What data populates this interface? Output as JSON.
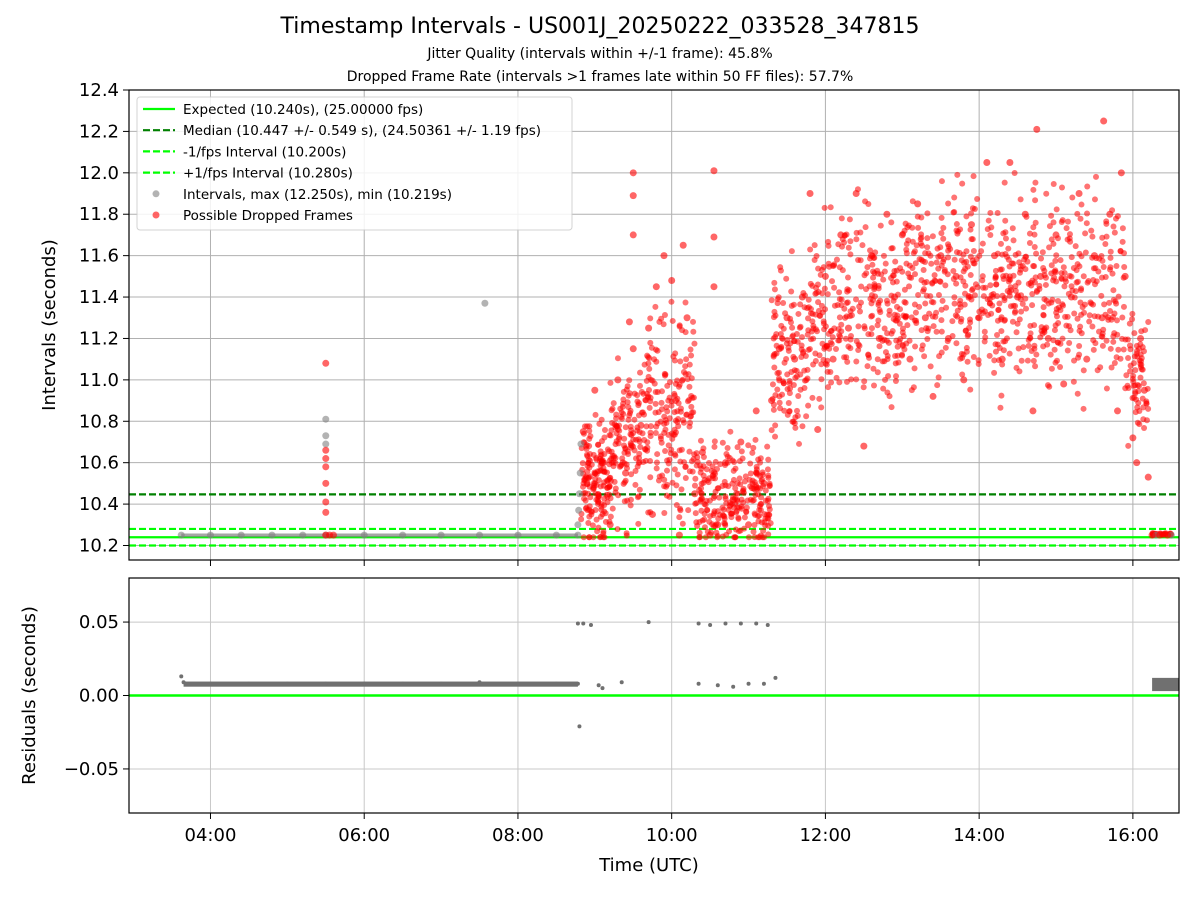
{
  "chart_data": {
    "type": "scatter",
    "title": "Timestamp Intervals - US001J_20250222_033528_347815",
    "subtitle1": "Jitter Quality (intervals within +/-1 frame): 45.8%",
    "subtitle2": "Dropped Frame Rate (intervals >1 frames late within 50 FF files): 57.7%",
    "xlabel": "Time (UTC)",
    "x_range_hours": [
      2.94,
      16.6
    ],
    "x_ticks": [
      {
        "v": 4,
        "label": "04:00"
      },
      {
        "v": 6,
        "label": "06:00"
      },
      {
        "v": 8,
        "label": "08:00"
      },
      {
        "v": 10,
        "label": "10:00"
      },
      {
        "v": 12,
        "label": "12:00"
      },
      {
        "v": 14,
        "label": "14:00"
      },
      {
        "v": 16,
        "label": "16:00"
      }
    ],
    "top": {
      "ylabel": "Intervals (seconds)",
      "ylim": [
        10.13,
        12.4
      ],
      "y_ticks": [
        {
          "v": 10.2,
          "label": "10.2"
        },
        {
          "v": 10.4,
          "label": "10.4"
        },
        {
          "v": 10.6,
          "label": "10.6"
        },
        {
          "v": 10.8,
          "label": "10.8"
        },
        {
          "v": 11.0,
          "label": "11.0"
        },
        {
          "v": 11.2,
          "label": "11.2"
        },
        {
          "v": 11.4,
          "label": "11.4"
        },
        {
          "v": 11.6,
          "label": "11.6"
        },
        {
          "v": 11.8,
          "label": "11.8"
        },
        {
          "v": 12.0,
          "label": "12.0"
        },
        {
          "v": 12.2,
          "label": "12.2"
        },
        {
          "v": 12.4,
          "label": "12.4"
        }
      ],
      "grid": "horizontal",
      "lines": [
        {
          "name": "Expected (10.240s), (25.00000 fps)",
          "y": 10.24,
          "color": "#00ff00",
          "style": "solid"
        },
        {
          "name": "Median (10.447 +/- 0.549 s), (24.50361 +/- 1.19 fps)",
          "y": 10.447,
          "color": "#008000",
          "style": "dashed"
        },
        {
          "name": "-1/fps Interval (10.200s)",
          "y": 10.2,
          "color": "#00ff00",
          "style": "dashed"
        },
        {
          "name": "+1/fps Interval (10.280s)",
          "y": 10.28,
          "color": "#00ff00",
          "style": "dashed"
        }
      ],
      "scatter_series": [
        {
          "name": "Intervals, max (12.250s), min (10.219s)",
          "color": "#808080",
          "points": [
            [
              3.62,
              10.25
            ],
            [
              4.0,
              10.25
            ],
            [
              4.4,
              10.25
            ],
            [
              4.8,
              10.25
            ],
            [
              5.2,
              10.25
            ],
            [
              5.5,
              10.25
            ],
            [
              5.5,
              10.81
            ],
            [
              5.5,
              10.73
            ],
            [
              5.5,
              10.69
            ],
            [
              6.0,
              10.25
            ],
            [
              6.5,
              10.25
            ],
            [
              7.0,
              10.25
            ],
            [
              7.5,
              10.25
            ],
            [
              7.57,
              11.37
            ],
            [
              8.0,
              10.25
            ],
            [
              8.5,
              10.25
            ],
            [
              8.78,
              10.25
            ],
            [
              8.78,
              10.3
            ],
            [
              8.79,
              10.37
            ],
            [
              8.8,
              10.45
            ],
            [
              8.81,
              10.55
            ],
            [
              8.82,
              10.69
            ],
            [
              16.3,
              10.25
            ],
            [
              16.5,
              10.25
            ]
          ]
        },
        {
          "name": "Possible Dropped Frames",
          "color": "#ff0000",
          "points": [
            [
              5.5,
              10.25
            ],
            [
              5.55,
              10.25
            ],
            [
              5.6,
              10.25
            ],
            [
              5.5,
              11.08
            ],
            [
              5.5,
              10.66
            ],
            [
              5.5,
              10.62
            ],
            [
              5.5,
              10.58
            ],
            [
              5.5,
              10.5
            ],
            [
              5.5,
              10.41
            ],
            [
              5.5,
              10.36
            ],
            [
              8.85,
              10.75
            ],
            [
              8.9,
              10.5
            ],
            [
              9.0,
              10.95
            ],
            [
              9.1,
              10.6
            ],
            [
              9.2,
              10.3
            ],
            [
              9.3,
              11.0
            ],
            [
              9.4,
              10.55
            ],
            [
              9.45,
              11.28
            ],
            [
              9.5,
              11.15
            ],
            [
              9.5,
              11.89
            ],
            [
              9.5,
              12.0
            ],
            [
              9.5,
              11.7
            ],
            [
              9.6,
              10.78
            ],
            [
              9.7,
              11.25
            ],
            [
              9.75,
              10.35
            ],
            [
              9.8,
              11.45
            ],
            [
              9.9,
              11.6
            ],
            [
              10.0,
              11.48
            ],
            [
              10.05,
              10.9
            ],
            [
              10.1,
              10.25
            ],
            [
              10.15,
              11.65
            ],
            [
              10.2,
              11.3
            ],
            [
              10.3,
              10.45
            ],
            [
              10.4,
              10.65
            ],
            [
              10.5,
              10.25
            ],
            [
              10.55,
              12.01
            ],
            [
              10.55,
              11.45
            ],
            [
              10.55,
              11.69
            ],
            [
              10.6,
              10.3
            ],
            [
              10.7,
              10.6
            ],
            [
              10.8,
              10.42
            ],
            [
              10.9,
              10.7
            ],
            [
              11.0,
              10.3
            ],
            [
              11.1,
              10.85
            ],
            [
              11.2,
              10.5
            ],
            [
              11.3,
              10.9
            ],
            [
              11.4,
              11.15
            ],
            [
              11.5,
              11.3
            ],
            [
              11.6,
              11.1
            ],
            [
              11.7,
              11.4
            ],
            [
              11.8,
              11.9
            ],
            [
              11.9,
              10.76
            ],
            [
              12.0,
              11.5
            ],
            [
              12.1,
              11.1
            ],
            [
              12.2,
              11.7
            ],
            [
              12.3,
              11.25
            ],
            [
              12.4,
              11.9
            ],
            [
              12.5,
              10.68
            ],
            [
              12.6,
              11.6
            ],
            [
              12.7,
              11.2
            ],
            [
              12.8,
              11.8
            ],
            [
              12.9,
              11.4
            ],
            [
              13.0,
              11.7
            ],
            [
              13.1,
              11.1
            ],
            [
              13.2,
              11.85
            ],
            [
              13.3,
              11.3
            ],
            [
              13.4,
              10.92
            ],
            [
              13.5,
              11.6
            ],
            [
              13.6,
              11.2
            ],
            [
              13.7,
              11.5
            ],
            [
              13.8,
              11.0
            ],
            [
              13.9,
              11.75
            ],
            [
              14.0,
              11.3
            ],
            [
              14.1,
              12.05
            ],
            [
              14.2,
              11.6
            ],
            [
              14.3,
              11.1
            ],
            [
              14.4,
              12.05
            ],
            [
              14.5,
              11.4
            ],
            [
              14.6,
              11.8
            ],
            [
              14.7,
              10.85
            ],
            [
              14.75,
              12.21
            ],
            [
              14.8,
              11.5
            ],
            [
              14.9,
              11.2
            ],
            [
              15.0,
              11.7
            ],
            [
              15.1,
              10.98
            ],
            [
              15.2,
              11.4
            ],
            [
              15.3,
              11.9
            ],
            [
              15.4,
              11.1
            ],
            [
              15.5,
              11.6
            ],
            [
              15.6,
              11.3
            ],
            [
              15.62,
              12.25
            ],
            [
              15.7,
              11.8
            ],
            [
              15.8,
              10.85
            ],
            [
              15.85,
              12.0
            ],
            [
              15.9,
              11.5
            ],
            [
              16.0,
              10.72
            ],
            [
              16.05,
              10.6
            ],
            [
              16.1,
              11.2
            ],
            [
              16.15,
              10.95
            ],
            [
              16.2,
              10.53
            ],
            [
              16.25,
              10.25
            ],
            [
              16.35,
              10.25
            ],
            [
              16.45,
              10.25
            ]
          ]
        }
      ]
    },
    "bottom": {
      "ylabel": "Residuals (seconds)",
      "ylim": [
        -0.08,
        0.08
      ],
      "y_ticks": [
        {
          "v": 0.05,
          "label": "0.05"
        },
        {
          "v": 0.0,
          "label": "0.00"
        },
        {
          "v": -0.05,
          "label": "−0.05"
        }
      ],
      "grid": "both",
      "zero_line_color": "#00ff00",
      "scatter_series": [
        {
          "name": "Residuals",
          "color": "#707070",
          "points": [
            [
              3.62,
              0.013
            ],
            [
              3.65,
              0.009
            ],
            [
              4.0,
              0.008
            ],
            [
              4.5,
              0.008
            ],
            [
              5.0,
              0.008
            ],
            [
              5.5,
              0.008
            ],
            [
              6.0,
              0.008
            ],
            [
              6.5,
              0.008
            ],
            [
              7.0,
              0.008
            ],
            [
              7.5,
              0.009
            ],
            [
              8.0,
              0.008
            ],
            [
              8.5,
              0.008
            ],
            [
              8.78,
              0.008
            ],
            [
              8.78,
              0.049
            ],
            [
              8.85,
              0.049
            ],
            [
              8.8,
              -0.021
            ],
            [
              8.95,
              0.048
            ],
            [
              9.05,
              0.007
            ],
            [
              9.1,
              0.005
            ],
            [
              9.35,
              0.009
            ],
            [
              9.7,
              0.05
            ],
            [
              10.35,
              0.049
            ],
            [
              10.5,
              0.048
            ],
            [
              10.7,
              0.049
            ],
            [
              10.9,
              0.049
            ],
            [
              11.1,
              0.049
            ],
            [
              11.25,
              0.048
            ],
            [
              10.35,
              0.008
            ],
            [
              10.6,
              0.007
            ],
            [
              10.8,
              0.006
            ],
            [
              11.0,
              0.008
            ],
            [
              11.2,
              0.008
            ],
            [
              11.35,
              0.012
            ],
            [
              16.3,
              0.008
            ],
            [
              16.45,
              0.007
            ],
            [
              16.55,
              0.009
            ]
          ]
        }
      ]
    },
    "legend": {
      "placement": "upper-left"
    }
  }
}
